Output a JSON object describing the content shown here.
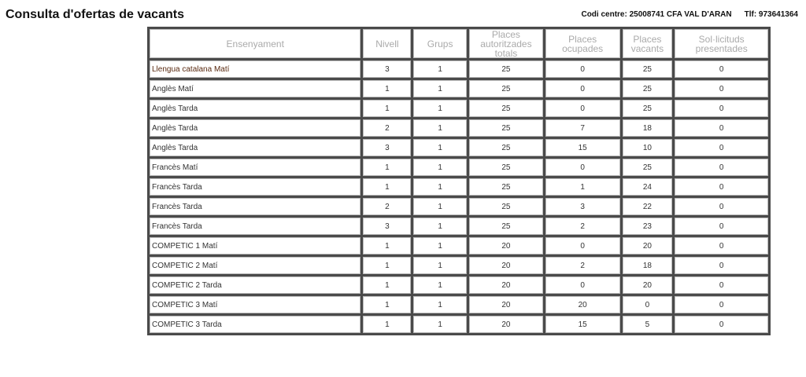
{
  "header": {
    "title": "Consulta d'ofertas de vacants",
    "codi_centre": "Codi centre: 25008741 CFA VAL D'ARAN",
    "telefon": "Tlf: 973641364"
  },
  "table": {
    "columns": [
      "Ensenyament",
      "Nivell",
      "Grups",
      "Places autoritzades totals",
      "Places ocupades",
      "Places vacants",
      "Sol·licituds presentades"
    ],
    "rows": [
      [
        "Llengua catalana Matí",
        "3",
        "1",
        "25",
        "0",
        "25",
        "0"
      ],
      [
        "Anglès Matí",
        "1",
        "1",
        "25",
        "0",
        "25",
        "0"
      ],
      [
        "Anglès Tarda",
        "1",
        "1",
        "25",
        "0",
        "25",
        "0"
      ],
      [
        "Anglès Tarda",
        "2",
        "1",
        "25",
        "7",
        "18",
        "0"
      ],
      [
        "Anglès Tarda",
        "3",
        "1",
        "25",
        "15",
        "10",
        "0"
      ],
      [
        "Francès Matí",
        "1",
        "1",
        "25",
        "0",
        "25",
        "0"
      ],
      [
        "Francès Tarda",
        "1",
        "1",
        "25",
        "1",
        "24",
        "0"
      ],
      [
        "Francès Tarda",
        "2",
        "1",
        "25",
        "3",
        "22",
        "0"
      ],
      [
        "Francès Tarda",
        "3",
        "1",
        "25",
        "2",
        "23",
        "0"
      ],
      [
        "COMPETIC 1 Matí",
        "1",
        "1",
        "20",
        "0",
        "20",
        "0"
      ],
      [
        "COMPETIC 2 Matí",
        "1",
        "1",
        "20",
        "2",
        "18",
        "0"
      ],
      [
        "COMPETIC 2 Tarda",
        "1",
        "1",
        "20",
        "0",
        "20",
        "0"
      ],
      [
        "COMPETIC 3 Matí",
        "1",
        "1",
        "20",
        "20",
        "0",
        "0"
      ],
      [
        "COMPETIC 3 Tarda",
        "1",
        "1",
        "20",
        "15",
        "5",
        "0"
      ]
    ]
  }
}
